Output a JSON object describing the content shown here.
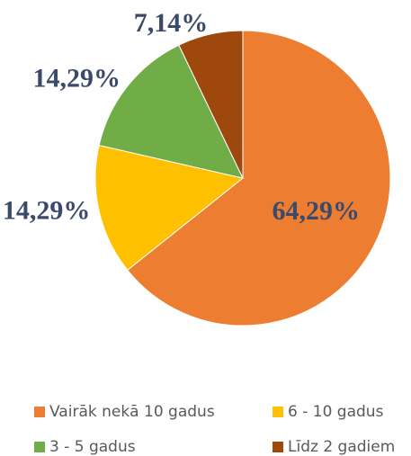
{
  "chart_data": {
    "type": "pie",
    "categories": [
      "Vairāk nekā 10 gadus",
      "6 - 10 gadus",
      "3 - 5 gadus",
      "Līdz 2 gadiem"
    ],
    "values": [
      64.29,
      14.29,
      14.29,
      7.14
    ],
    "value_labels": [
      "64,29%",
      "14,29%",
      "14,29%",
      "7,14%"
    ],
    "colors": [
      "#ED7D31",
      "#FFC000",
      "#70AD47",
      "#9E480E"
    ],
    "legend": "bottom"
  }
}
